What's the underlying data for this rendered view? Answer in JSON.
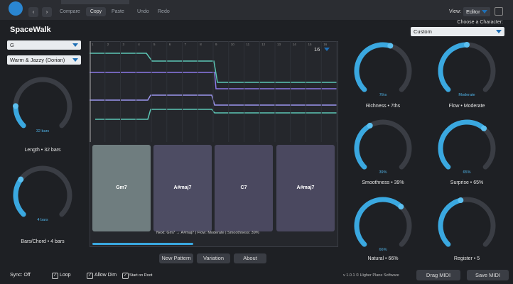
{
  "header": {
    "buttons": [
      "Compare",
      "Copy",
      "Paste",
      "Undo",
      "Redo"
    ],
    "view_label": "View:",
    "view_value": "Editor",
    "character_label": "Choose a Character:",
    "character_value": "Custom"
  },
  "title": "SpaceWalk",
  "key": "G",
  "mode": "Warm & Jazzy (Dorian)",
  "knobs_left": [
    {
      "value_text": "32 bars",
      "label": "Length • 32 bars"
    },
    {
      "value_text": "4 bars",
      "label": "Bars/Chord • 4 bars"
    }
  ],
  "graph": {
    "steps": [
      "1",
      "2",
      "3",
      "4",
      "5",
      "6",
      "7",
      "8",
      "9",
      "10",
      "11",
      "12",
      "13",
      "14",
      "15",
      "16"
    ],
    "length": "16"
  },
  "pads": [
    "Gm7",
    "A#maj7",
    "C7",
    "A#maj7"
  ],
  "status": "Next: Gm7 → A#maj7  |  Flow: Moderate  |  Smoothness: 39%",
  "actions": [
    "New Pattern",
    "Variation",
    "About"
  ],
  "knobs_right": [
    {
      "value_text": "7ths",
      "label": "Richness • 7ths"
    },
    {
      "value_text": "Moderate",
      "label": "Flow • Moderate"
    },
    {
      "value_text": "39%",
      "label": "Smoothness • 39%"
    },
    {
      "value_text": "65%",
      "label": "Surprise • 65%"
    },
    {
      "value_text": "66%",
      "label": "Natural • 66%"
    },
    {
      "label": "Register • 5"
    }
  ],
  "footer": {
    "sync": "Sync: Off",
    "checkboxes": [
      "Loop",
      "Allow Dim",
      "Start on Root"
    ],
    "version": "v 1.0.1 © Higher Plane Software",
    "buttons": [
      "Drag MIDI",
      "Save MIDI"
    ]
  }
}
